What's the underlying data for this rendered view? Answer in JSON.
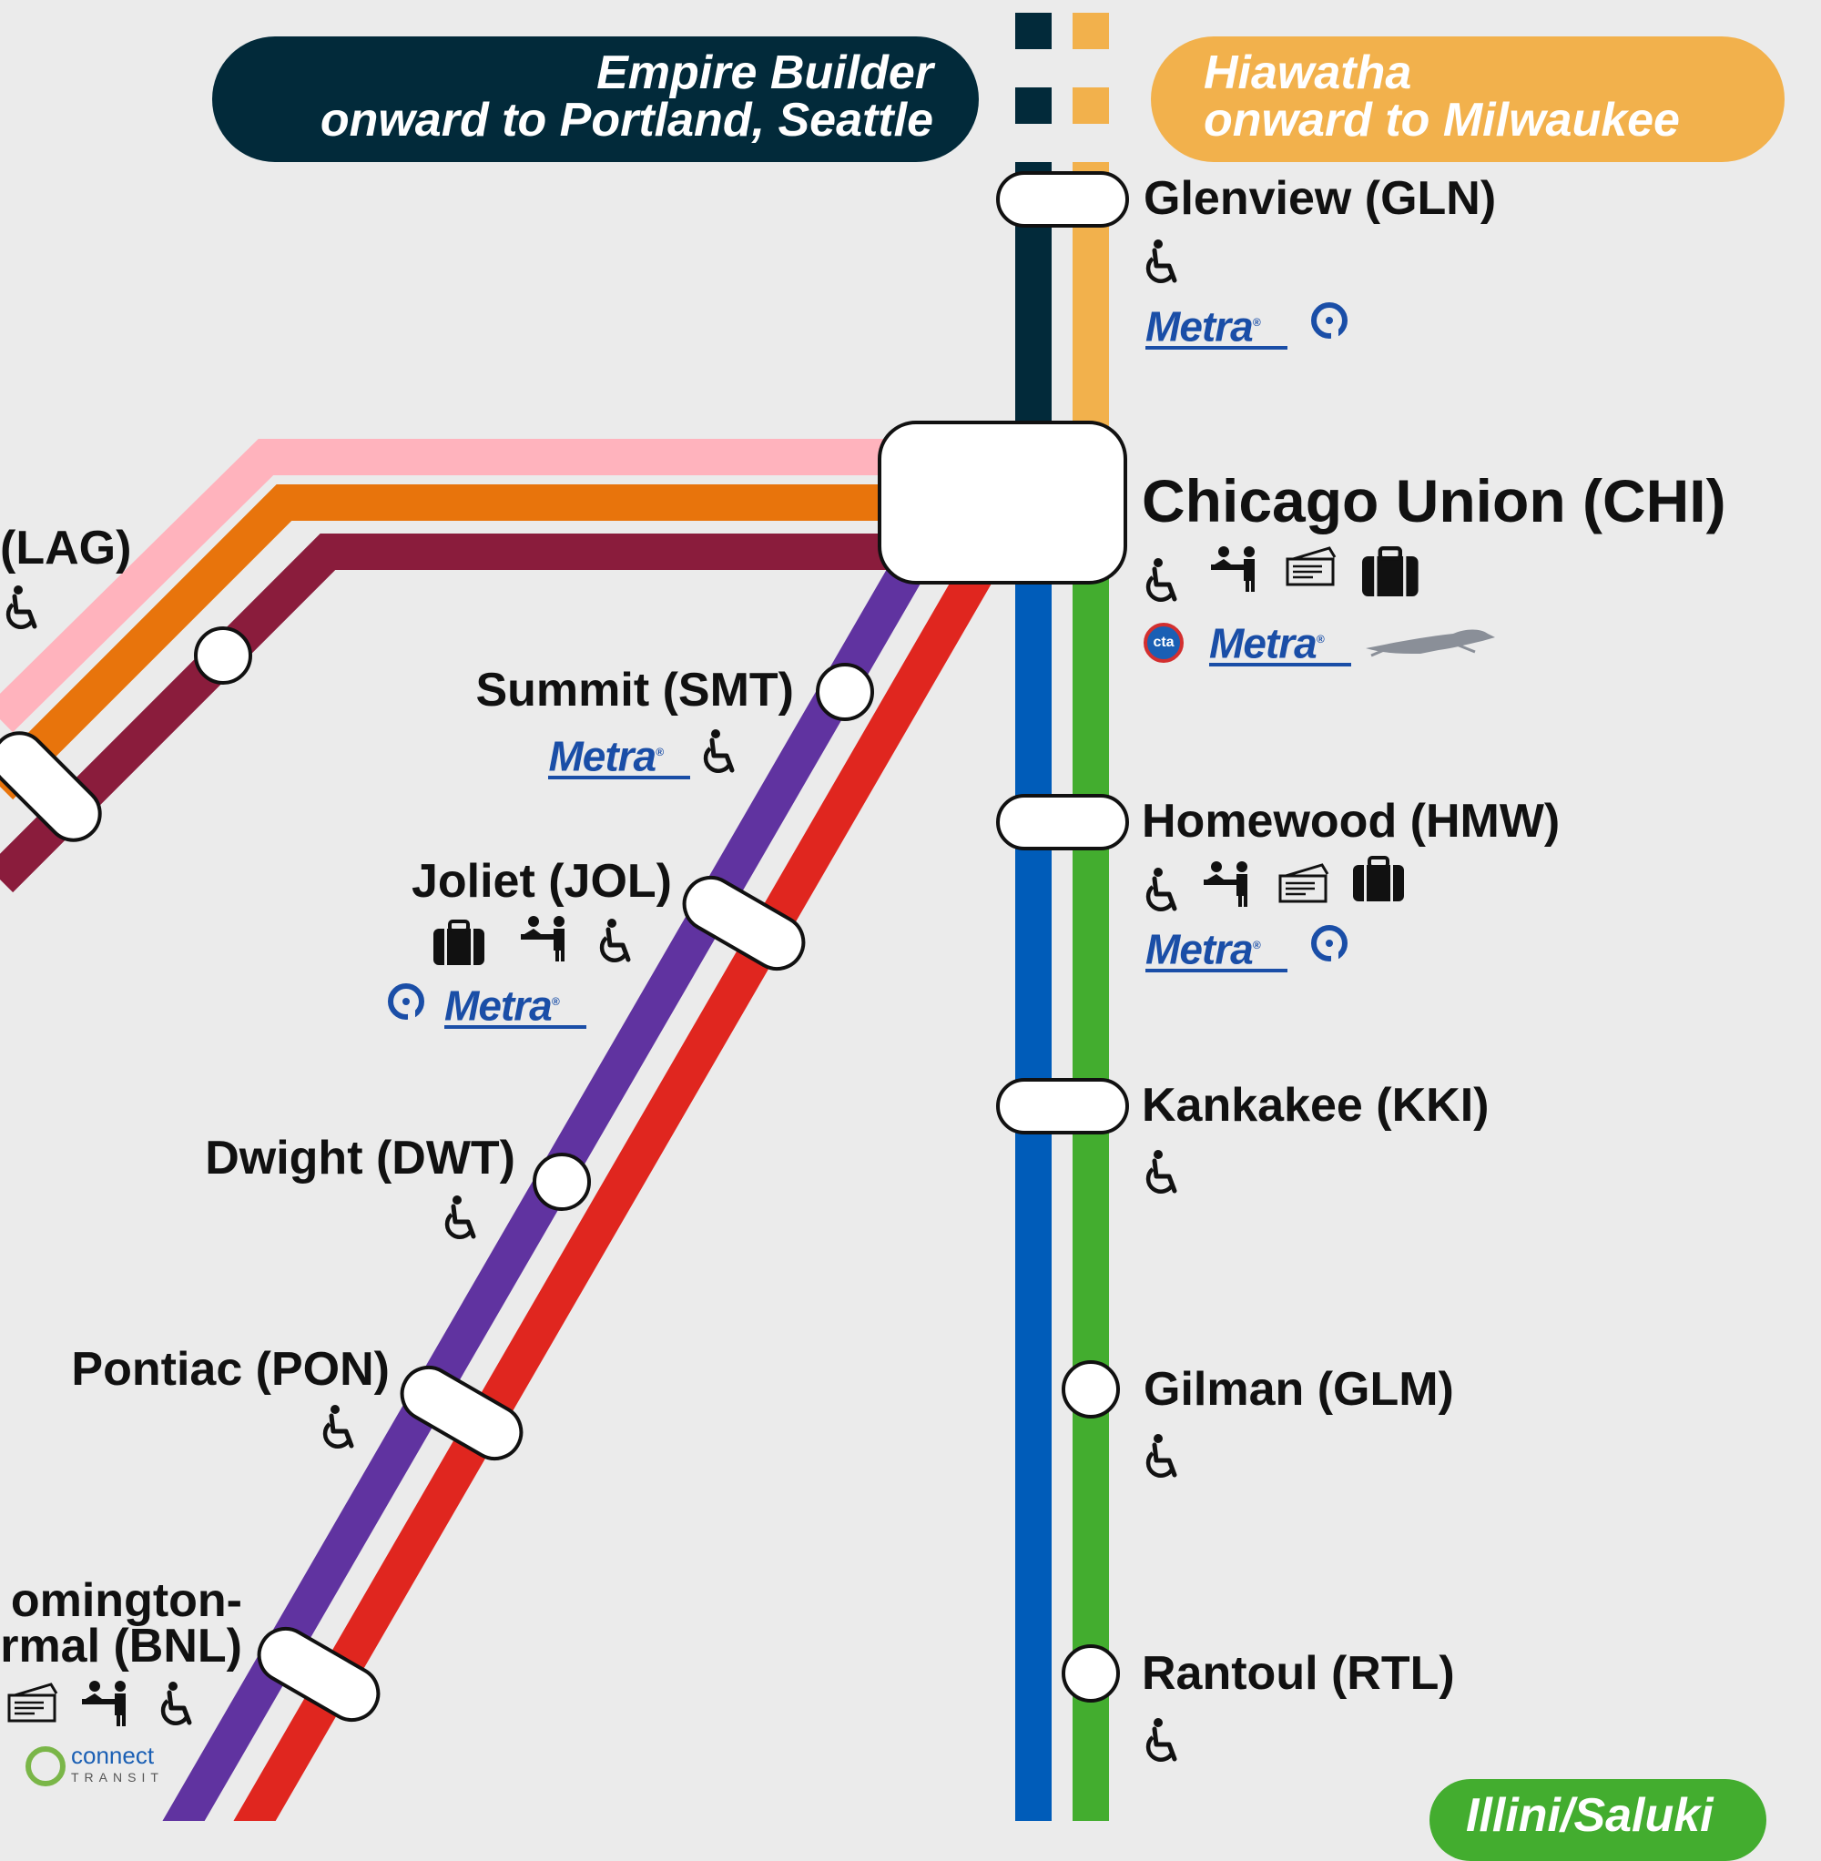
{
  "banners": {
    "empire_builder": {
      "line1": "Empire Builder",
      "line2": "onward to Portland, Seattle",
      "color": "#022a3a"
    },
    "hiawatha": {
      "line1": "Hiawatha",
      "line2": "onward to Milwaukee",
      "color": "#f2b14c"
    },
    "illini_saluki": {
      "text": "Illini/Saluki",
      "color": "#43ad2f"
    }
  },
  "colors": {
    "empire_builder": "#022a3a",
    "hiawatha": "#f2b14c",
    "pink": "#ffb3bd",
    "orange": "#e8740c",
    "maroon": "#8a1c3c",
    "purple": "#6033a0",
    "red": "#e0261f",
    "blue": "#005cb9",
    "green": "#43ad2f"
  },
  "stations": {
    "glenview": {
      "name": "Glenview (GLN)",
      "icons": [
        "wheelchair-icon",
        "metra-logo",
        "pace-logo"
      ]
    },
    "chicago": {
      "name": "Chicago Union (CHI)",
      "icons": [
        "wheelchair-icon",
        "ticket-agent-icon",
        "ticket-icon",
        "baggage-icon",
        "cta-logo",
        "metra-logo",
        "greyhound-logo"
      ]
    },
    "homewood": {
      "name": "Homewood (HMW)",
      "icons": [
        "wheelchair-icon",
        "ticket-agent-icon",
        "ticket-icon",
        "baggage-icon",
        "metra-logo",
        "pace-logo"
      ]
    },
    "kankakee": {
      "name": "Kankakee (KKI)",
      "icons": [
        "wheelchair-icon"
      ]
    },
    "gilman": {
      "name": "Gilman (GLM)",
      "icons": [
        "wheelchair-icon"
      ]
    },
    "rantoul": {
      "name": "Rantoul (RTL)",
      "icons": [
        "wheelchair-icon"
      ]
    },
    "summit": {
      "name": "Summit (SMT)",
      "icons": [
        "metra-logo",
        "wheelchair-icon"
      ]
    },
    "joliet": {
      "name": "Joliet (JOL)",
      "icons": [
        "baggage-icon",
        "ticket-agent-icon",
        "wheelchair-icon",
        "pace-logo",
        "metra-logo"
      ]
    },
    "dwight": {
      "name": "Dwight (DWT)",
      "icons": [
        "wheelchair-icon"
      ]
    },
    "pontiac": {
      "name": "Pontiac (PON)",
      "icons": [
        "wheelchair-icon"
      ]
    },
    "bloomington": {
      "line1": "omington-",
      "line2": "rmal (BNL)",
      "icons": [
        "ticket-icon",
        "ticket-agent-icon",
        "wheelchair-icon",
        "connect-transit-logo"
      ]
    },
    "lagrange": {
      "name": "(LAG)",
      "icons": [
        "wheelchair-icon"
      ]
    }
  },
  "logos": {
    "metra": "Metra",
    "cta": "cta",
    "connect": "connect",
    "transit": "TRANSIT"
  }
}
